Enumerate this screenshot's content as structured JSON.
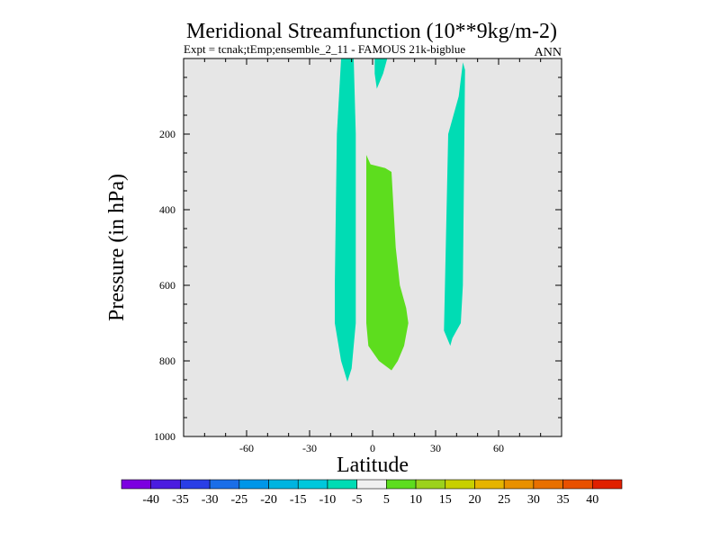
{
  "chart_data": {
    "type": "contour",
    "title": "Meridional Streamfunction (10**9kg/m-2)",
    "subtitle": "Expt = tcnak;tEmp;ensemble_2_11 - FAMOUS 21k-bigblue",
    "season": "ANN",
    "xlabel": "Latitude",
    "ylabel": "Pressure (in hPa)",
    "xlim": [
      -90,
      90
    ],
    "ylim": [
      1000,
      0
    ],
    "xticks": [
      -60,
      -30,
      0,
      30,
      60
    ],
    "yticks": [
      200,
      400,
      600,
      800,
      1000
    ],
    "background_color": "#e6e6e6",
    "regions": [
      {
        "name": "negative-cell-tropics",
        "level": "-10 to -5",
        "color": "#00dcb4",
        "polygon": [
          [
            -15,
            0
          ],
          [
            -9,
            0
          ],
          [
            -8,
            200
          ],
          [
            -8,
            700
          ],
          [
            -10,
            820
          ],
          [
            -12,
            855
          ],
          [
            -15,
            800
          ],
          [
            -18,
            700
          ],
          [
            -18,
            600
          ],
          [
            -17,
            200
          ]
        ]
      },
      {
        "name": "negative-cell-notch",
        "level": "-10 to -5",
        "color": "#00dcb4",
        "polygon": [
          [
            1,
            0
          ],
          [
            7,
            0
          ],
          [
            5,
            40
          ],
          [
            2,
            80
          ],
          [
            1,
            40
          ]
        ]
      },
      {
        "name": "negative-cell-midlatitude",
        "level": "-10 to -5",
        "color": "#00dcb4",
        "polygon": [
          [
            43,
            10
          ],
          [
            44,
            30
          ],
          [
            43,
            600
          ],
          [
            42,
            700
          ],
          [
            40,
            720
          ],
          [
            38,
            740
          ],
          [
            37,
            760
          ],
          [
            34,
            720
          ],
          [
            36,
            200
          ],
          [
            41,
            100
          ]
        ]
      },
      {
        "name": "positive-cell",
        "level": "5 to 10",
        "color": "#5ddd1e",
        "polygon": [
          [
            -3,
            255
          ],
          [
            -1,
            280
          ],
          [
            6,
            290
          ],
          [
            9,
            300
          ],
          [
            11,
            500
          ],
          [
            13,
            600
          ],
          [
            16,
            660
          ],
          [
            17,
            700
          ],
          [
            15,
            760
          ],
          [
            12,
            800
          ],
          [
            9,
            825
          ],
          [
            3,
            800
          ],
          [
            -2,
            760
          ],
          [
            -3,
            700
          ]
        ]
      }
    ],
    "colorbar": {
      "labels": [
        "-40",
        "-35",
        "-30",
        "-25",
        "-20",
        "-15",
        "-10",
        "-5",
        "5",
        "10",
        "15",
        "20",
        "25",
        "30",
        "35",
        "40"
      ],
      "colors": [
        "#7c00e0",
        "#4b1ce0",
        "#2a3ee6",
        "#1a6ee8",
        "#0096e8",
        "#00b4e0",
        "#00c8dc",
        "#00dcb4",
        "#f0f0f0",
        "#5ddd1e",
        "#9cd21c",
        "#c8d000",
        "#e6b400",
        "#e89000",
        "#e87000",
        "#e85000",
        "#e02000"
      ]
    }
  }
}
